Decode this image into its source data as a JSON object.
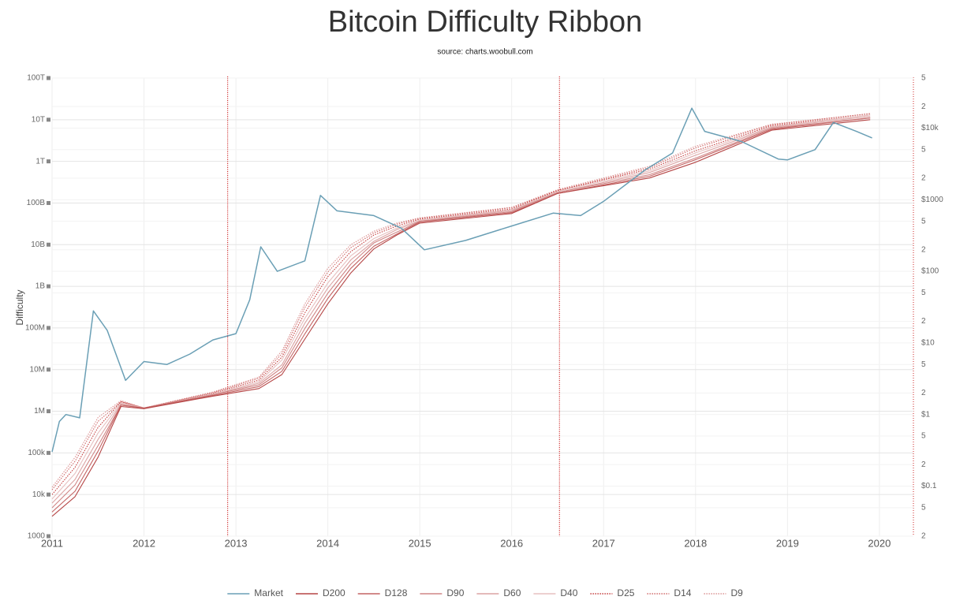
{
  "chart_data": {
    "type": "line",
    "title": "Bitcoin Difficulty Ribbon",
    "subtitle": "source: charts.woobull.com",
    "y_label": "Difficulty",
    "ylog": true,
    "y2log": true,
    "grid": true,
    "xlim": [
      2011,
      2020.37
    ],
    "xticks": [
      2011,
      2012,
      2013,
      2014,
      2015,
      2016,
      2017,
      2018,
      2019,
      2020
    ],
    "ylim": [
      1000,
      100000000000000
    ],
    "yticks": [
      1000,
      {
        "value": 10000,
        "label": "10k"
      },
      {
        "value": 100000,
        "label": "100k"
      },
      {
        "value": 1000000,
        "label": "1M"
      },
      {
        "value": 10000000,
        "label": "10M"
      },
      {
        "value": 100000000,
        "label": "100M"
      },
      {
        "value": 1000000000,
        "label": "1B"
      },
      {
        "value": 10000000000,
        "label": "10B"
      },
      {
        "value": 100000000000,
        "label": "100B"
      },
      {
        "value": 1000000000000,
        "label": "1T"
      },
      {
        "value": 10000000000000,
        "label": "10T"
      },
      {
        "value": 100000000000000,
        "label": "100T"
      }
    ],
    "y2lim": [
      0.02,
      50000
    ],
    "y2ticks": [
      {
        "value": 0.02,
        "label": "2"
      },
      {
        "value": 0.05,
        "label": "5"
      },
      {
        "value": 0.1,
        "label": "$0.1"
      },
      {
        "value": 0.2,
        "label": "2"
      },
      {
        "value": 0.5,
        "label": "5"
      },
      {
        "value": 1,
        "label": "$1"
      },
      2,
      5,
      {
        "value": 10,
        "label": "$10"
      },
      {
        "value": 20,
        "label": "2"
      },
      {
        "value": 50,
        "label": "5"
      },
      {
        "value": 100,
        "label": "$100"
      },
      {
        "value": 200,
        "label": "2"
      },
      {
        "value": 500,
        "label": "5"
      },
      {
        "value": 1000,
        "label": "$1000"
      },
      {
        "value": 2000,
        "label": "2"
      },
      {
        "value": 5000,
        "label": "5"
      },
      {
        "value": 10000,
        "label": "$10k"
      },
      {
        "value": 20000,
        "label": "2"
      },
      {
        "value": 50000,
        "label": "5"
      }
    ],
    "vlines": [
      2012.91,
      2016.52
    ],
    "vline_color": "#cc2222",
    "x": [
      2011,
      2011.25,
      2011.5,
      2011.75,
      2012,
      2012.75,
      2013.25,
      2013.5,
      2013.75,
      2014,
      2014.25,
      2014.5,
      2014.75,
      2015,
      2016,
      2016.5,
      2017.5,
      2018,
      2018.83,
      2019.9
    ],
    "series": [
      {
        "name": "Market",
        "color": "#6a9fb5",
        "axis": "y2",
        "x": [
          2011,
          2011.08,
          2011.15,
          2011.3,
          2011.45,
          2011.6,
          2011.8,
          2012,
          2012.25,
          2012.5,
          2012.75,
          2013,
          2013.15,
          2013.27,
          2013.45,
          2013.75,
          2013.92,
          2014.1,
          2014.5,
          2014.8,
          2015.05,
          2015.5,
          2016,
          2016.45,
          2016.75,
          2017,
          2017.45,
          2017.75,
          2017.96,
          2018.1,
          2018.5,
          2018.9,
          2019,
          2019.3,
          2019.5,
          2019.75,
          2019.92
        ],
        "values": [
          0.3,
          0.8,
          1,
          0.9,
          28,
          15,
          3,
          5.5,
          5,
          7,
          11,
          13.5,
          40,
          220,
          100,
          140,
          1150,
          700,
          600,
          400,
          200,
          270,
          430,
          650,
          600,
          950,
          2600,
          4500,
          19000,
          9000,
          6500,
          3700,
          3600,
          5000,
          12000,
          9000,
          7300
        ]
      },
      {
        "name": "D200",
        "color": "#b54545",
        "dash": false,
        "values": [
          3000.0,
          8900.0,
          79000.0,
          1300000.0,
          1150000.0,
          2300000.0,
          3500000.0,
          7600000.0,
          54000000.0,
          380000000.0,
          2100000000.0,
          7900000000.0,
          17000000000.0,
          33000000000.0,
          56000000000.0,
          170000000000.0,
          400000000000.0,
          950000000000.0,
          5600000000000.0,
          10000000000000.0
        ]
      },
      {
        "name": "D128",
        "color": "#c46464",
        "dash": false,
        "values": [
          3800.0,
          12000.0,
          110000.0,
          1400000.0,
          1200000.0,
          2400000.0,
          3900000.0,
          9100000.0,
          72000000.0,
          510000000.0,
          2700000000.0,
          9100000000.0,
          18000000000.0,
          35000000000.0,
          59000000000.0,
          170000000000.0,
          440000000000.0,
          1100000000000.0,
          5900000000000.0,
          11000000000000.0
        ]
      },
      {
        "name": "D90",
        "color": "#d08686",
        "dash": false,
        "values": [
          4800.0,
          17000.0,
          150000.0,
          1400000.0,
          1200000.0,
          2500000.0,
          4300000.0,
          11000000.0,
          97000000.0,
          680000000.0,
          3400000000.0,
          11000000000.0,
          20000000000.0,
          36000000000.0,
          62000000000.0,
          180000000000.0,
          480000000000.0,
          1200000000000.0,
          6200000000000.0,
          11000000000000.0
        ]
      },
      {
        "name": "D60",
        "color": "#dca4a4",
        "dash": false,
        "values": [
          6200.0,
          23000.0,
          210000.0,
          1500000.0,
          1200000.0,
          2500000.0,
          4700000.0,
          13000000.0,
          130000000.0,
          910000000.0,
          4300000000.0,
          12000000000.0,
          23000000000.0,
          37000000000.0,
          66000000000.0,
          180000000000.0,
          540000000000.0,
          1400000000000.0,
          6500000000000.0,
          12000000000000.0
        ]
      },
      {
        "name": "D40",
        "color": "#e7c0c0",
        "dash": false,
        "values": [
          7800.0,
          32000.0,
          300000.0,
          1600000.0,
          1200000.0,
          2600000.0,
          5100000.0,
          17000000.0,
          170000000.0,
          1200000000.0,
          5400000000.0,
          14000000000.0,
          25000000000.0,
          39000000000.0,
          69000000000.0,
          190000000000.0,
          590000000000.0,
          1600000000000.0,
          6800000000000.0,
          13000000000000.0
        ]
      },
      {
        "name": "D25",
        "color": "#c43c3c",
        "dash": true,
        "values": [
          10000.0,
          45000.0,
          410000.0,
          1700000.0,
          1200000.0,
          2700000.0,
          5600000.0,
          20000000.0,
          230000000.0,
          1700000000.0,
          6800000000.0,
          17000000000.0,
          28000000000.0,
          41000000000.0,
          72000000000.0,
          200000000000.0,
          650000000000.0,
          1800000000000.0,
          7200000000000.0,
          13000000000000.0
        ]
      },
      {
        "name": "D14",
        "color": "#d06a6a",
        "dash": true,
        "values": [
          13000.0,
          63000.0,
          570000.0,
          1700000.0,
          1200000.0,
          2800000.0,
          6200000.0,
          24000000.0,
          310000000.0,
          2200000000.0,
          8500000000.0,
          19000000000.0,
          31000000000.0,
          43000000000.0,
          77000000000.0,
          200000000000.0,
          710000000000.0,
          2100000000000.0,
          7600000000000.0,
          14000000000000.0
        ]
      },
      {
        "name": "D9",
        "color": "#dc9494",
        "dash": true,
        "values": [
          15000.0,
          78000.0,
          710000.0,
          1800000.0,
          1200000.0,
          2900000.0,
          6600000.0,
          28000000.0,
          380000000.0,
          2700000000.0,
          10000000000.0,
          21000000000.0,
          33000000000.0,
          44000000000.0,
          79000000000.0,
          210000000000.0,
          760000000000.0,
          2300000000000.0,
          7800000000000.0,
          14000000000000.0
        ]
      }
    ]
  }
}
